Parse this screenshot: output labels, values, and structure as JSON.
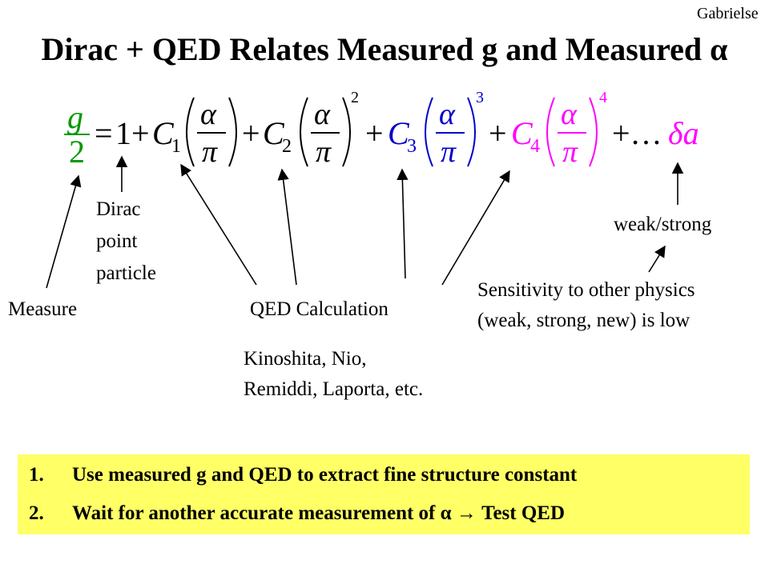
{
  "header": {
    "author": "Gabrielse",
    "title": "Dirac + QED Relates Measured g and Measured α"
  },
  "equation": {
    "g": "g",
    "two": "2",
    "equals": "=",
    "one": "1",
    "plus": "+",
    "c": "C",
    "sub1": "1",
    "sub2": "2",
    "sub3": "3",
    "sub4": "4",
    "alpha": "α",
    "pi": "π",
    "exp2": "2",
    "exp3": "3",
    "exp4": "4",
    "ellipsis": "+…",
    "delta_a": "δa",
    "colors": {
      "green": "#009900",
      "blue": "#0000cc",
      "magenta": "#ff00ff"
    }
  },
  "labels": {
    "dirac": [
      "Dirac",
      "point",
      "particle"
    ],
    "measure": "Measure",
    "qed": "QED Calculation",
    "weak_strong": "weak/strong",
    "sensitivity": [
      "Sensitivity to other physics",
      "(weak, strong, new) is low"
    ],
    "kinoshita": [
      "Kinoshita, Nio,",
      "Remiddi, Laporta, etc."
    ]
  },
  "box": {
    "background": "#ffff66",
    "items": [
      {
        "num": "1.",
        "text": "Use measured g and QED to extract fine structure constant"
      },
      {
        "num": "2.",
        "text": "Wait for another accurate measurement of α  → Test QED"
      }
    ]
  }
}
